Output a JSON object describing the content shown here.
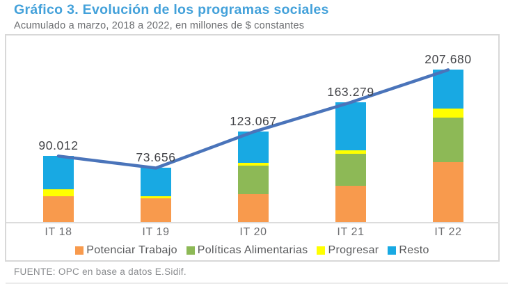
{
  "header": {
    "title": "Gráfico 3. Evolución de los programas sociales",
    "subtitle": "Acumulado a marzo, 2018 a 2022, en millones de $ constantes"
  },
  "footer": {
    "source": "FUENTE: OPC en base a datos E.Sidif."
  },
  "colors": {
    "title_blue": "#43A1DA",
    "line_blue": "#4A74BA",
    "axis_gray": "#DCDCDC",
    "label_dark": "#414246",
    "text_gray": "#6D6E71"
  },
  "chart_data": {
    "type": "bar",
    "subtype": "stacked-column-with-total-line",
    "title": "Gráfico 3. Evolución de los programas sociales",
    "subtitle": "Acumulado a marzo, 2018 a 2022, en millones de $ constantes",
    "xlabel": "",
    "ylabel": "millones de $ constantes",
    "grid": false,
    "legend_position": "bottom",
    "categories": [
      "IT 18",
      "IT 19",
      "IT 20",
      "IT 21",
      "IT 22"
    ],
    "series": [
      {
        "name": "Potenciar Trabajo",
        "color": "#F89A4D",
        "values": [
          35300,
          32270,
          37870,
          49560,
          81240
        ]
      },
      {
        "name": "Políticas Alimentarias",
        "color": "#8DB956",
        "values": [
          0,
          0,
          38810,
          43900,
          61455
        ]
      },
      {
        "name": "Progresar",
        "color": "#FFFF00",
        "values": [
          9050,
          3200,
          3790,
          4130,
          12425
        ]
      },
      {
        "name": "Resto",
        "color": "#18A9E3",
        "values": [
          45662,
          38186,
          42597,
          65689,
          52560
        ]
      }
    ],
    "totals": {
      "name": "Total",
      "values": [
        90012,
        73656,
        123067,
        163279,
        207680
      ],
      "labels": [
        "90.012",
        "73.656",
        "123.067",
        "163.279",
        "207.680"
      ],
      "line_color": "#4A74BA"
    }
  }
}
